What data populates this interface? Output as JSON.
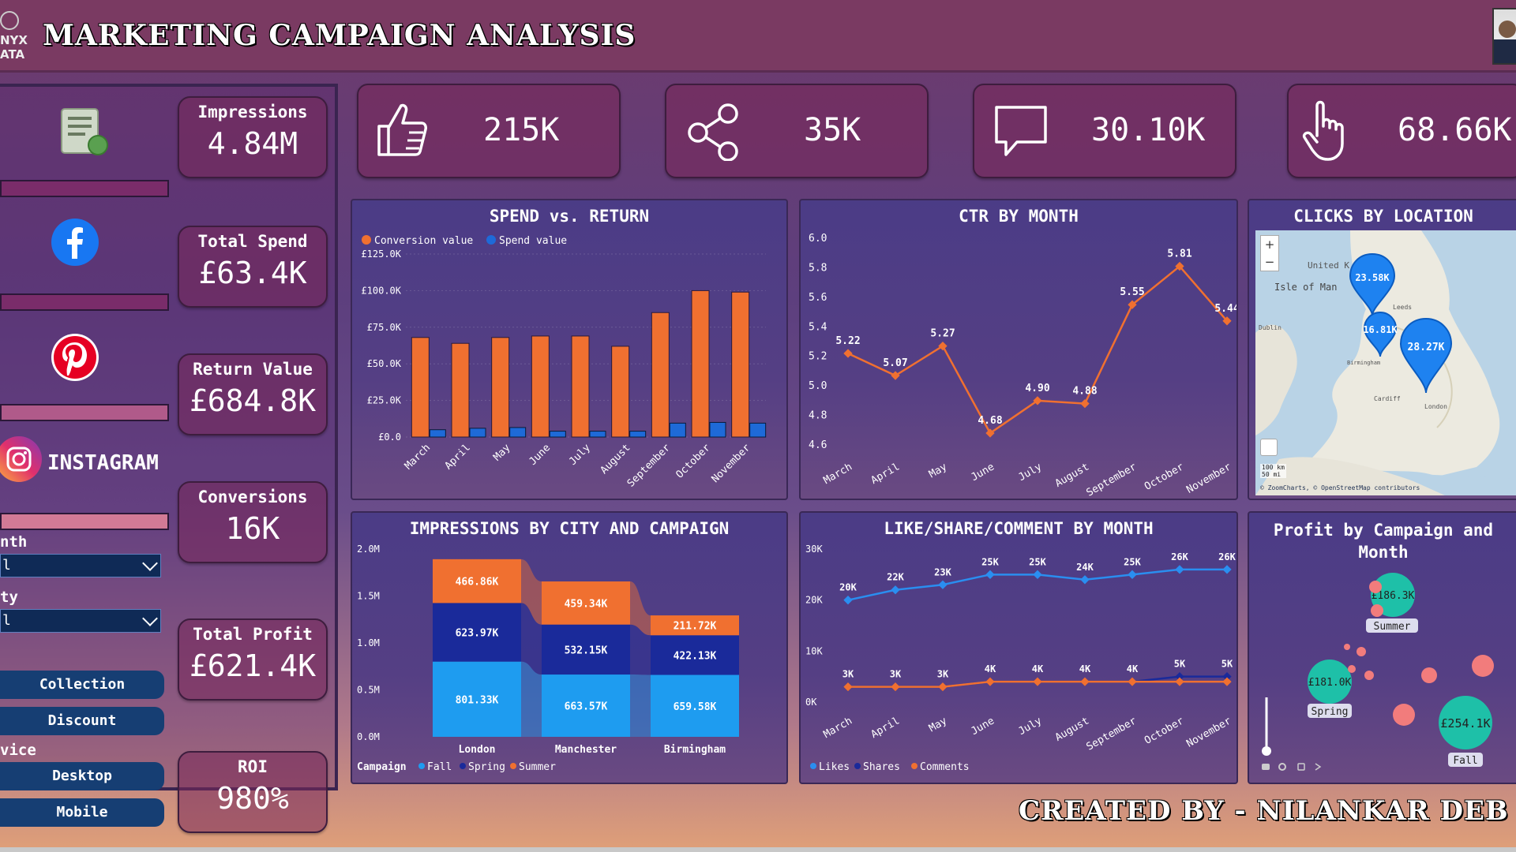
{
  "header": {
    "title": "MARKETING CAMPAIGN ANALYSIS",
    "logo_line1": "NYX",
    "logo_line2": "ATA"
  },
  "platforms": [
    {
      "name": "document-icon"
    },
    {
      "name": "facebook-icon"
    },
    {
      "name": "pinterest-icon"
    },
    {
      "name": "instagram-icon",
      "label": "INSTAGRAM"
    }
  ],
  "kpis": [
    {
      "label": "Impressions",
      "value": "4.84M"
    },
    {
      "label": "Total Spend",
      "value": "£63.4K"
    },
    {
      "label": "Return Value",
      "value": "£684.8K"
    },
    {
      "label": "Conversions",
      "value": "16K"
    },
    {
      "label": "Total Profit",
      "value": "£621.4K"
    },
    {
      "label": "ROI",
      "value": "980%"
    }
  ],
  "filters": {
    "month_label": "nth",
    "month_value": "l",
    "city_label": "ty",
    "city_value": "l",
    "device_label": "vice",
    "campaign_type_options": [
      "Collection",
      "Discount"
    ],
    "device_options": [
      "Desktop",
      "Mobile"
    ]
  },
  "top_cards": [
    {
      "icon": "thumbs-up-icon",
      "value": "215K"
    },
    {
      "icon": "share-icon",
      "value": "35K"
    },
    {
      "icon": "comment-icon",
      "value": "30.10K"
    },
    {
      "icon": "click-icon",
      "value": "68.66K"
    }
  ],
  "spend_return": {
    "title": "SPEND vs. RETURN",
    "legend": [
      "Conversion value",
      "Spend value"
    ],
    "colors": {
      "conversion": "#f07030",
      "spend": "#1e6ad8"
    },
    "chart_data": {
      "type": "bar",
      "categories": [
        "March",
        "April",
        "May",
        "June",
        "July",
        "August",
        "September",
        "October",
        "November"
      ],
      "series": [
        {
          "name": "Conversion value",
          "values": [
            68000,
            64000,
            68000,
            69000,
            69000,
            62000,
            85000,
            100000,
            99000
          ]
        },
        {
          "name": "Spend value",
          "values": [
            5000,
            6000,
            6500,
            4000,
            4000,
            4000,
            9500,
            10000,
            9500
          ]
        }
      ],
      "yticks": [
        "£0.0",
        "£25.0K",
        "£50.0K",
        "£75.0K",
        "£100.0K",
        "£125.0K"
      ],
      "ylim": [
        0,
        125000
      ]
    }
  },
  "ctr": {
    "title": "CTR BY MONTH",
    "chart_data": {
      "type": "line",
      "categories": [
        "March",
        "April",
        "May",
        "June",
        "July",
        "August",
        "September",
        "October",
        "November"
      ],
      "values": [
        5.22,
        5.07,
        5.27,
        4.68,
        4.9,
        4.88,
        5.55,
        5.81,
        5.44
      ],
      "labels": [
        "5.22",
        "5.07",
        "5.27",
        "4.68",
        "4.90",
        "4.88",
        "5.55",
        "5.81",
        "5.44"
      ],
      "yticks": [
        "4.6",
        "4.8",
        "5.0",
        "5.2",
        "5.4",
        "5.6",
        "5.8",
        "6.0"
      ],
      "ylim": [
        4.6,
        6.0
      ]
    }
  },
  "map": {
    "title": "CLICKS BY LOCATION",
    "pins": [
      {
        "label": "23.58K"
      },
      {
        "label": "16.81K"
      },
      {
        "label": "28.27K"
      }
    ],
    "place_labels": [
      "United K",
      "Isle of Man",
      "Dublin",
      "Cardiff",
      "London",
      "Leeds",
      "Birmingham"
    ],
    "zoom_in": "+",
    "zoom_out": "−",
    "scale_1": "100 km",
    "scale_2": "50 mi",
    "attribution": "© ZoomCharts, © OpenStreetMap contributors"
  },
  "impressions": {
    "title": "IMPRESSIONS BY CITY AND CAMPAIGN",
    "legend_title": "Campaign",
    "legend": [
      "Fall",
      "Spring",
      "Summer"
    ],
    "colors": {
      "Fall": "#1e9cf0",
      "Spring": "#1a2a9a",
      "Summer": "#f07030"
    },
    "chart_data": {
      "type": "bar",
      "categories": [
        "London",
        "Manchester",
        "Birmingham"
      ],
      "series": [
        {
          "name": "Fall",
          "values": [
            801330,
            663570,
            659580
          ],
          "labels": [
            "801.33K",
            "663.57K",
            "659.58K"
          ]
        },
        {
          "name": "Spring",
          "values": [
            623970,
            532150,
            422130
          ],
          "labels": [
            "623.97K",
            "532.15K",
            "422.13K"
          ]
        },
        {
          "name": "Summer",
          "values": [
            466860,
            459340,
            211720
          ],
          "labels": [
            "466.86K",
            "459.34K",
            "211.72K"
          ]
        }
      ],
      "yticks": [
        "0.0M",
        "0.5M",
        "1.0M",
        "1.5M",
        "2.0M"
      ],
      "ylim": [
        0,
        2000000
      ]
    }
  },
  "lsc": {
    "title": "LIKE/SHARE/COMMENT BY MONTH",
    "legend": [
      "Likes",
      "Shares",
      "Comments"
    ],
    "colors": {
      "Likes": "#2a8ef0",
      "Shares": "#1a2a9a",
      "Comments": "#f07030"
    },
    "chart_data": {
      "type": "line",
      "categories": [
        "March",
        "April",
        "May",
        "June",
        "July",
        "August",
        "September",
        "October",
        "November"
      ],
      "series": [
        {
          "name": "Likes",
          "values": [
            20000,
            22000,
            23000,
            25000,
            25000,
            24000,
            25000,
            26000,
            26000
          ],
          "labels": [
            "20K",
            "22K",
            "23K",
            "25K",
            "25K",
            "24K",
            "25K",
            "26K",
            "26K"
          ]
        },
        {
          "name": "Shares",
          "values": [
            3000,
            3000,
            3000,
            4000,
            4000,
            4000,
            4000,
            5000,
            5000
          ],
          "labels": [
            "3K",
            "3K",
            "3K",
            "4K",
            "4K",
            "4K",
            "4K",
            "5K",
            "5K"
          ]
        },
        {
          "name": "Comments",
          "values": [
            3000,
            3000,
            3000,
            4000,
            4000,
            4000,
            4000,
            4000,
            4000
          ]
        }
      ],
      "yticks": [
        "0K",
        "10K",
        "20K",
        "30K"
      ],
      "ylim": [
        0,
        30000
      ]
    }
  },
  "profit": {
    "title_line1": "Profit by Campaign and",
    "title_line2": "Month",
    "bubbles": [
      {
        "label": "£186.3K",
        "tag": "Summer"
      },
      {
        "label": "£181.0K",
        "tag": "Spring"
      },
      {
        "label": "£254.1K",
        "tag": "Fall"
      }
    ]
  },
  "footer": {
    "text": "CREATED BY - NILANKAR DEB"
  }
}
